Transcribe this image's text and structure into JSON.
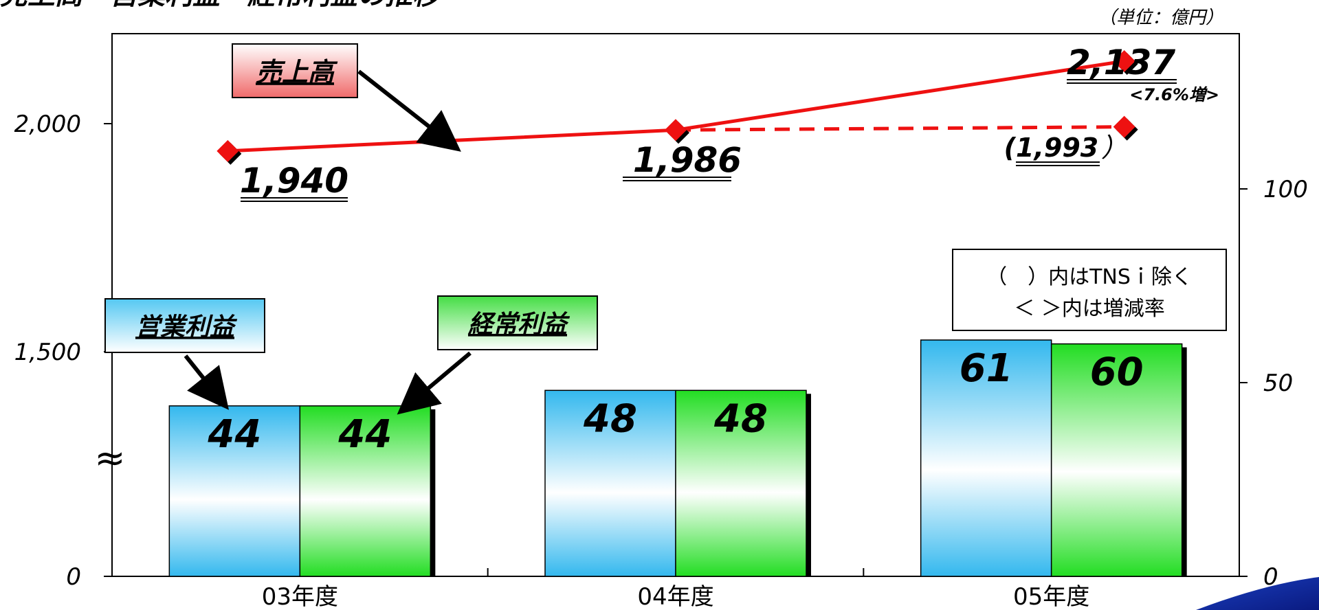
{
  "header": {
    "title_fragment": "売上高・営業利益・経常利益の推移"
  },
  "unit_note": "（単位：億円）",
  "notes": {
    "line1": "（　）内はTNSｉ除く",
    "line2": "＜ ＞内は増減率"
  },
  "callouts": {
    "sales": "売上高",
    "operating_profit": "営業利益",
    "ordinary_profit": "経常利益"
  },
  "break_mark": "≈",
  "colors": {
    "sales_line": "#ee1111",
    "operating_bar_top": "#33b8ee",
    "ordinary_bar_top": "#22dd22",
    "sales_callout": "#f06a6a",
    "operating_callout": "#55c8f2",
    "ordinary_callout": "#44dd44"
  },
  "chart_data": {
    "type": "bar+line",
    "categories": [
      "03年度",
      "04年度",
      "05年度"
    ],
    "left_axis": {
      "ticks": [
        0,
        1500,
        2000
      ],
      "tick_labels": [
        "0",
        "1,500",
        "2,000"
      ],
      "broken": true
    },
    "right_axis": {
      "ticks": [
        0,
        50,
        100
      ],
      "tick_labels": [
        "0",
        "50",
        "100"
      ]
    },
    "series": [
      {
        "name": "売上高",
        "type": "line",
        "axis": "left",
        "values": [
          1940,
          1986,
          2137
        ],
        "labels": [
          "1,940",
          "1,986",
          "2,137"
        ]
      },
      {
        "name": "売上高（TNSｉ除く）",
        "type": "line-dashed",
        "axis": "left",
        "from_category": 1,
        "values": [
          null,
          1986,
          1993
        ],
        "labels": [
          "",
          "",
          "1,993"
        ]
      },
      {
        "name": "営業利益",
        "type": "bar",
        "axis": "right",
        "values": [
          44,
          48,
          61
        ],
        "labels": [
          "44",
          "48",
          "61"
        ]
      },
      {
        "name": "経常利益",
        "type": "bar",
        "axis": "right",
        "values": [
          44,
          48,
          60
        ],
        "labels": [
          "44",
          "48",
          "60"
        ]
      }
    ],
    "annotations": {
      "growth_2137": "<7.6%増>",
      "label_1993_prefix": "(",
      "label_1993_suffix": "）"
    }
  }
}
